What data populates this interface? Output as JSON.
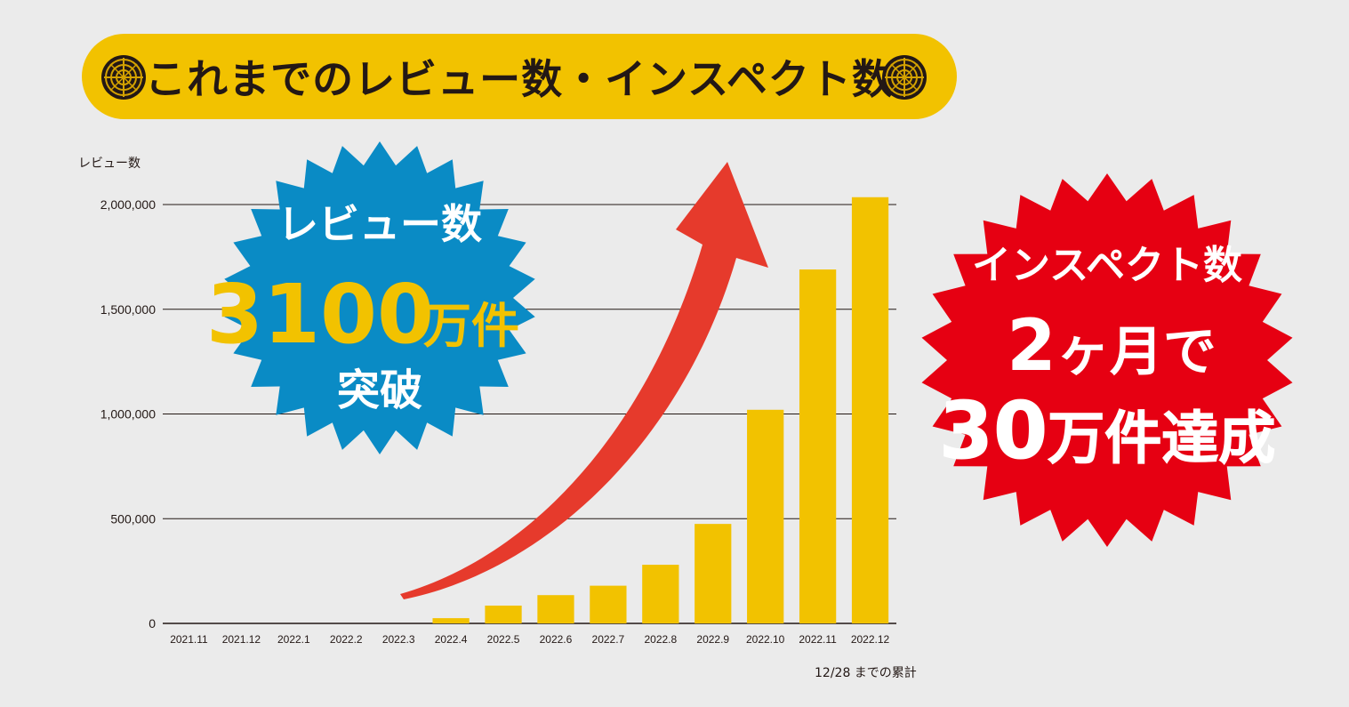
{
  "banner": {
    "title": "これまでのレビュー数・インスペクト数",
    "icon_left": "manhole-cover-icon",
    "icon_right": "manhole-cover-icon"
  },
  "badge_reviews": {
    "line1": "レビュー数",
    "number": "3100",
    "unit": "万件",
    "line3": "突破",
    "color": "#0a8bc5",
    "number_color": "#f2c200"
  },
  "badge_inspect": {
    "line1": "インスペクト数",
    "line2_num": "2",
    "line2_rest": "ヶ月で",
    "line3_num": "30",
    "line3_rest": "万件達成",
    "color": "#e60012"
  },
  "chart_data": {
    "type": "bar",
    "ylabel": "レビュー数",
    "ylim": [
      0,
      2000000
    ],
    "yticks": [
      "0",
      "500,000",
      "1,000,000",
      "1,500,000",
      "2,000,000"
    ],
    "categories": [
      "2021.11",
      "2021.12",
      "2022.1",
      "2022.2",
      "2022.3",
      "2022.4",
      "2022.5",
      "2022.6",
      "2022.7",
      "2022.8",
      "2022.9",
      "2022.10",
      "2022.11",
      "2022.12"
    ],
    "values": [
      0,
      0,
      0,
      0,
      0,
      25000,
      85000,
      135000,
      180000,
      280000,
      475000,
      1020000,
      1690000,
      2035000
    ],
    "bar_color": "#f2c200",
    "arrow_color": "#e63a2c",
    "grid": true,
    "note": "12/28 までの累計"
  }
}
